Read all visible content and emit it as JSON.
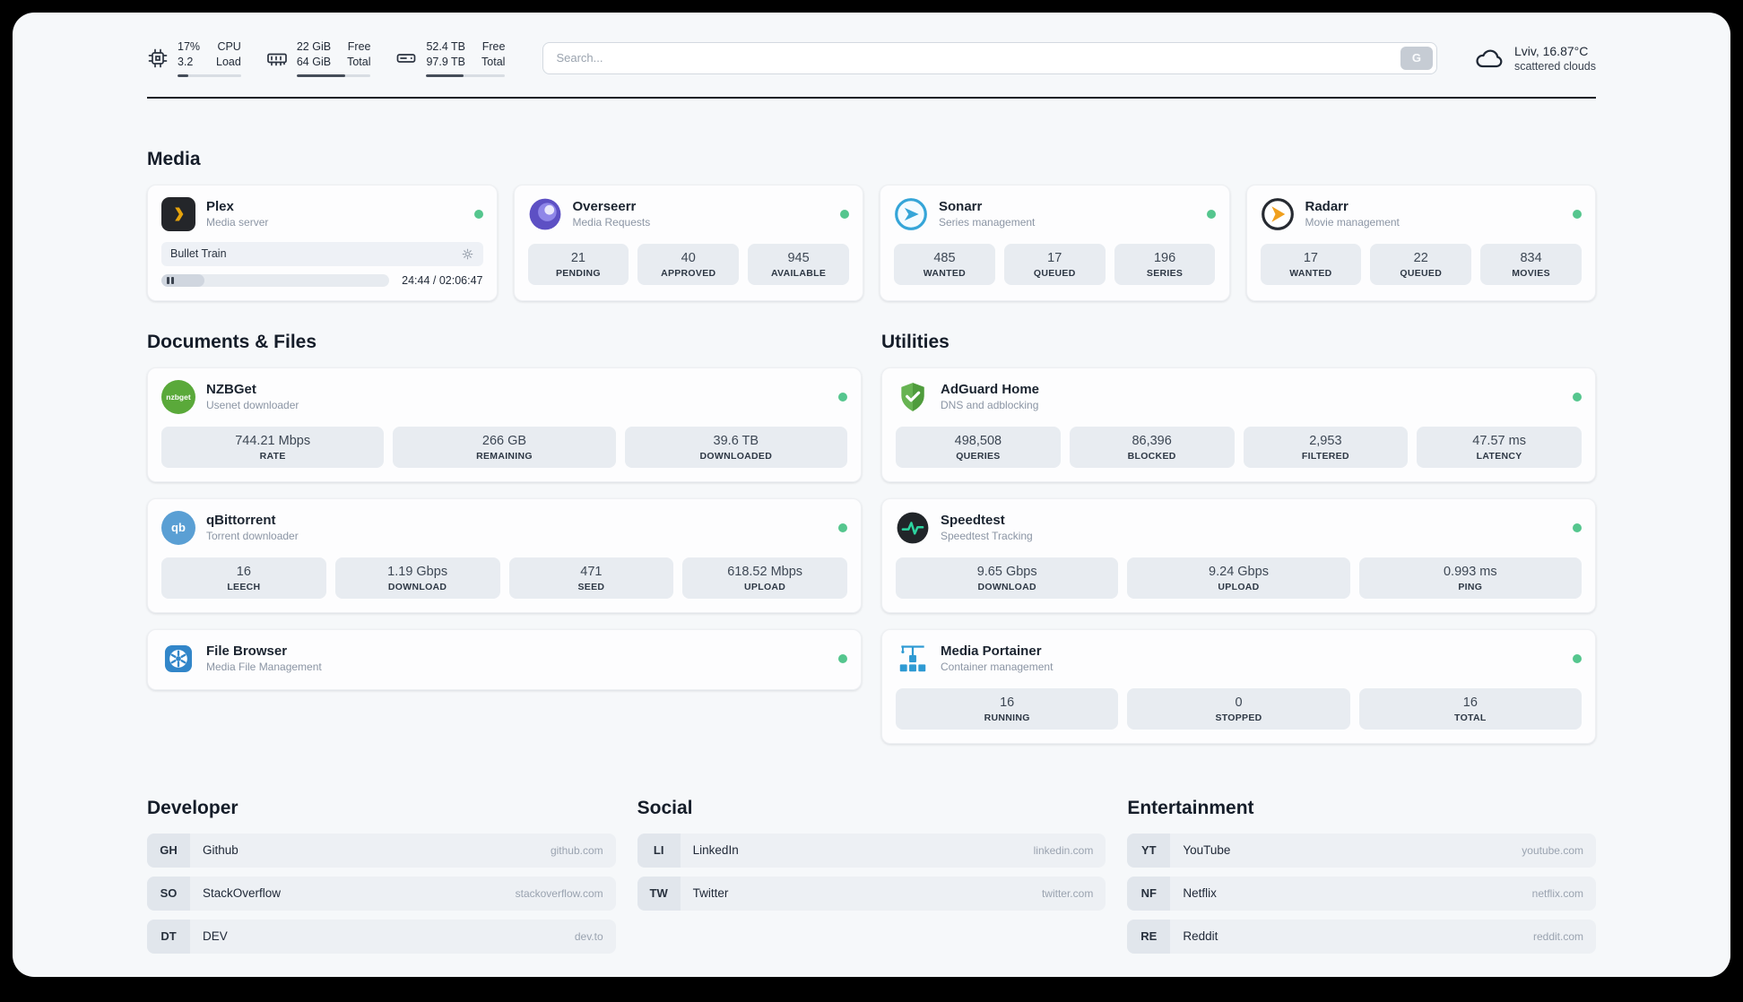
{
  "colors": {
    "status_online": "#55c68e",
    "plex_accent": "#e6a30c",
    "sonarr_accent": "#35a5d8",
    "radarr_accent": "#f0a01e",
    "adguard_accent": "#5fae48",
    "portainer_accent": "#2e9ad3"
  },
  "topbar": {
    "cpu": {
      "icon": "cpu-chip-icon",
      "value": "17%",
      "secondary": "3.2",
      "label_top": "CPU",
      "label_bottom": "Load",
      "usage_percent": 17
    },
    "memory": {
      "icon": "ram-icon",
      "value": "22 GiB",
      "secondary": "64 GiB",
      "label_top": "Free",
      "label_bottom": "Total",
      "usage_percent": 66
    },
    "storage": {
      "icon": "hard-drive-icon",
      "value": "52.4 TB",
      "secondary": "97.9 TB",
      "label_top": "Free",
      "label_bottom": "Total",
      "usage_percent": 47
    },
    "search": {
      "placeholder": "Search...",
      "button_label": "G"
    },
    "weather": {
      "icon": "cloud-icon",
      "location": "Lviv, 16.87°C",
      "condition": "scattered clouds"
    }
  },
  "sections": {
    "media": {
      "title": "Media"
    },
    "documents": {
      "title": "Documents & Files"
    },
    "utilities": {
      "title": "Utilities"
    },
    "developer": {
      "title": "Developer"
    },
    "social": {
      "title": "Social"
    },
    "entertainment": {
      "title": "Entertainment"
    }
  },
  "apps": {
    "plex": {
      "name": "Plex",
      "description": "Media server",
      "icon": "plex-icon",
      "status": "online",
      "player": {
        "title": "Bullet Train",
        "time_display": "24:44 / 02:06:47",
        "progress_percent": 19
      }
    },
    "overseerr": {
      "name": "Overseerr",
      "description": "Media Requests",
      "icon": "overseerr-icon",
      "status": "online",
      "stats": [
        {
          "value": "21",
          "label": "PENDING"
        },
        {
          "value": "40",
          "label": "APPROVED"
        },
        {
          "value": "945",
          "label": "AVAILABLE"
        }
      ]
    },
    "sonarr": {
      "name": "Sonarr",
      "description": "Series management",
      "icon": "sonarr-icon",
      "status": "online",
      "stats": [
        {
          "value": "485",
          "label": "WANTED"
        },
        {
          "value": "17",
          "label": "QUEUED"
        },
        {
          "value": "196",
          "label": "SERIES"
        }
      ]
    },
    "radarr": {
      "name": "Radarr",
      "description": "Movie management",
      "icon": "radarr-icon",
      "status": "online",
      "stats": [
        {
          "value": "17",
          "label": "WANTED"
        },
        {
          "value": "22",
          "label": "QUEUED"
        },
        {
          "value": "834",
          "label": "MOVIES"
        }
      ]
    },
    "nzbget": {
      "name": "NZBGet",
      "description": "Usenet downloader",
      "icon": "nzbget-icon",
      "icon_text": "nzbget",
      "status": "online",
      "stats": [
        {
          "value": "744.21 Mbps",
          "label": "RATE"
        },
        {
          "value": "266 GB",
          "label": "REMAINING"
        },
        {
          "value": "39.6 TB",
          "label": "DOWNLOADED"
        }
      ]
    },
    "qbittorrent": {
      "name": "qBittorrent",
      "description": "Torrent downloader",
      "icon": "qbittorrent-icon",
      "icon_text": "qb",
      "status": "online",
      "stats": [
        {
          "value": "16",
          "label": "LEECH"
        },
        {
          "value": "1.19 Gbps",
          "label": "DOWNLOAD"
        },
        {
          "value": "471",
          "label": "SEED"
        },
        {
          "value": "618.52 Mbps",
          "label": "UPLOAD"
        }
      ]
    },
    "filebrowser": {
      "name": "File Browser",
      "description": "Media File Management",
      "icon": "filebrowser-icon",
      "status": "online",
      "stats": []
    },
    "adguard": {
      "name": "AdGuard Home",
      "description": "DNS and adblocking",
      "icon": "adguard-shield-icon",
      "status": "online",
      "stats": [
        {
          "value": "498,508",
          "label": "QUERIES"
        },
        {
          "value": "86,396",
          "label": "BLOCKED"
        },
        {
          "value": "2,953",
          "label": "FILTERED"
        },
        {
          "value": "47.57 ms",
          "label": "LATENCY"
        }
      ]
    },
    "speedtest": {
      "name": "Speedtest",
      "description": "Speedtest Tracking",
      "icon": "speedtest-icon",
      "status": "online",
      "stats": [
        {
          "value": "9.65 Gbps",
          "label": "DOWNLOAD"
        },
        {
          "value": "9.24 Gbps",
          "label": "UPLOAD"
        },
        {
          "value": "0.993 ms",
          "label": "PING"
        }
      ]
    },
    "portainer": {
      "name": "Media Portainer",
      "description": "Container management",
      "icon": "portainer-crane-icon",
      "status": "online",
      "stats": [
        {
          "value": "16",
          "label": "RUNNING"
        },
        {
          "value": "0",
          "label": "STOPPED"
        },
        {
          "value": "16",
          "label": "TOTAL"
        }
      ]
    }
  },
  "bookmarks": {
    "developer": [
      {
        "abbr": "GH",
        "name": "Github",
        "url": "github.com"
      },
      {
        "abbr": "SO",
        "name": "StackOverflow",
        "url": "stackoverflow.com"
      },
      {
        "abbr": "DT",
        "name": "DEV",
        "url": "dev.to"
      }
    ],
    "social": [
      {
        "abbr": "LI",
        "name": "LinkedIn",
        "url": "linkedin.com"
      },
      {
        "abbr": "TW",
        "name": "Twitter",
        "url": "twitter.com"
      }
    ],
    "entertainment": [
      {
        "abbr": "YT",
        "name": "YouTube",
        "url": "youtube.com"
      },
      {
        "abbr": "NF",
        "name": "Netflix",
        "url": "netflix.com"
      },
      {
        "abbr": "RE",
        "name": "Reddit",
        "url": "reddit.com"
      }
    ]
  }
}
